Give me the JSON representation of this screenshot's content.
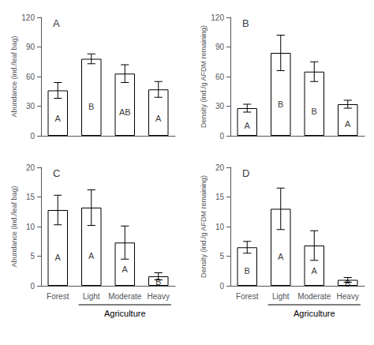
{
  "chart_data": [
    {
      "type": "bar",
      "title": "A",
      "categories": [
        "Forest",
        "Light",
        "Moderate",
        "Heavy"
      ],
      "values": [
        46,
        78,
        63,
        47
      ],
      "errors": [
        8,
        5,
        9,
        8
      ],
      "annotations": [
        {
          "text": "A",
          "x": "Forest"
        },
        {
          "text": "B",
          "x": "Light"
        },
        {
          "text": "AB",
          "x": "Moderate"
        },
        {
          "text": "A",
          "x": "Heavy"
        }
      ],
      "ylabel": "Abundance (ind./leaf bag)",
      "ylim": [
        0,
        120
      ],
      "yticks": [
        0,
        30,
        60,
        90,
        120
      ],
      "color": "white",
      "grid": false,
      "tick_labels": "y"
    },
    {
      "type": "bar",
      "title": "B",
      "categories": [
        "Forest",
        "Light",
        "Moderate",
        "Heavy"
      ],
      "values": [
        28,
        84,
        65,
        32
      ],
      "errors": [
        4,
        18,
        10,
        4
      ],
      "annotations": [
        {
          "text": "A",
          "x": "Forest"
        },
        {
          "text": "B",
          "x": "Light"
        },
        {
          "text": "B",
          "x": "Moderate"
        },
        {
          "text": "A",
          "x": "Heavy"
        }
      ],
      "ylabel": "Density (ind./g AFDM remaining)",
      "ylim": [
        0,
        120
      ],
      "yticks": [
        0,
        30,
        60,
        90,
        120
      ],
      "color": "white",
      "grid": false,
      "tick_labels": "y"
    },
    {
      "type": "bar",
      "title": "C",
      "categories": [
        "Forest",
        "Light",
        "Moderate",
        "Heavy"
      ],
      "values": [
        12.8,
        13.2,
        7.3,
        1.6
      ],
      "errors": [
        2.5,
        3.0,
        2.8,
        0.6
      ],
      "annotations": [
        {
          "text": "A",
          "x": "Forest"
        },
        {
          "text": "A",
          "x": "Light"
        },
        {
          "text": "A",
          "x": "Moderate"
        },
        {
          "text": "B",
          "x": "Heavy"
        }
      ],
      "ylabel": "Abundance (ind./leaf bag)",
      "xlabel": "Agriculture",
      "ylim": [
        0,
        20
      ],
      "yticks": [
        0,
        5,
        10,
        15,
        20
      ],
      "color": "white",
      "grid": false
    },
    {
      "type": "bar",
      "title": "D",
      "categories": [
        "Forest",
        "Light",
        "Moderate",
        "Heavy"
      ],
      "values": [
        6.5,
        13.0,
        6.8,
        1.0
      ],
      "errors": [
        1.0,
        3.5,
        2.5,
        0.4
      ],
      "annotations": [
        {
          "text": "B",
          "x": "Forest"
        },
        {
          "text": "A",
          "x": "Light"
        },
        {
          "text": "A",
          "x": "Moderate"
        },
        {
          "text": "B",
          "x": "Heavy"
        }
      ],
      "ylabel": "Density (ind./g AFDM remaining)",
      "xlabel": "Agriculture",
      "ylim": [
        0,
        20
      ],
      "yticks": [
        0,
        5,
        10,
        15,
        20
      ],
      "color": "white",
      "grid": false
    }
  ]
}
